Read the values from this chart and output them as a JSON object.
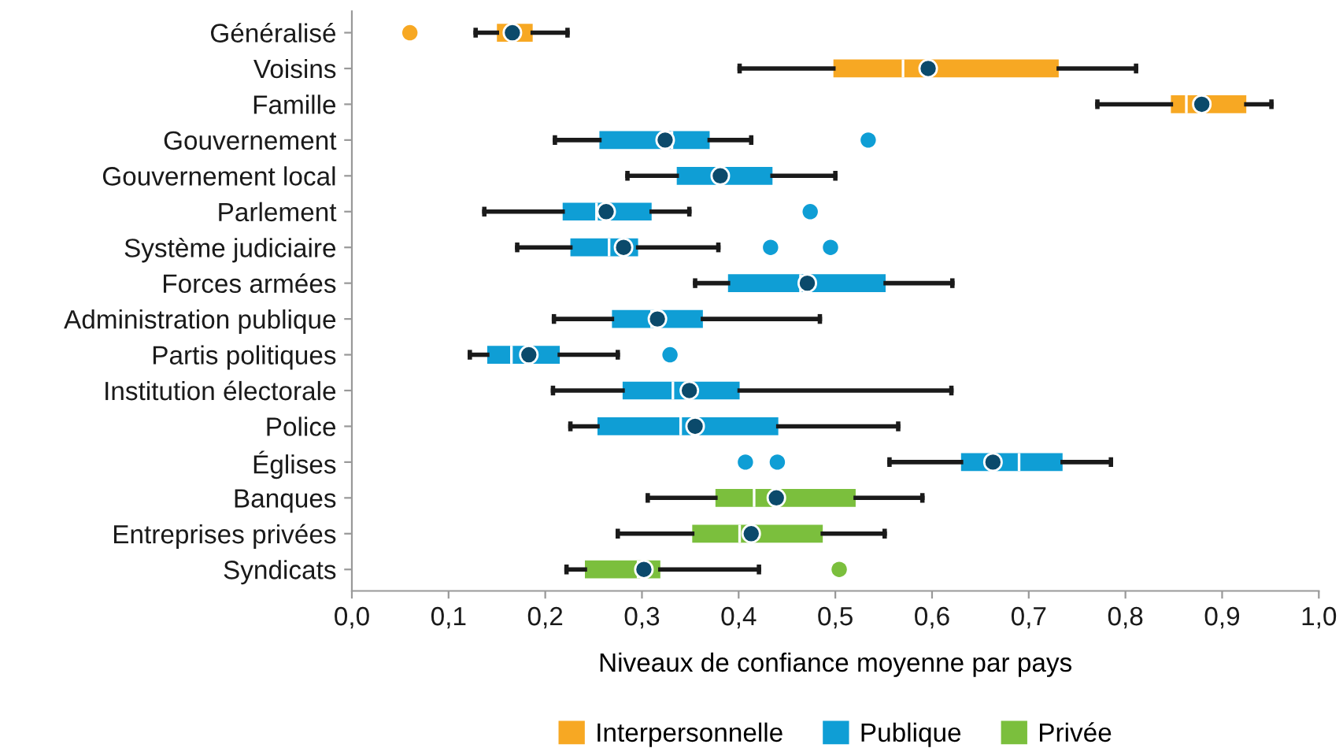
{
  "chart_data": {
    "type": "box",
    "orientation": "horizontal",
    "xlabel": "Niveaux de confiance moyenne par pays",
    "legend": "bottom",
    "grid": false,
    "categories": [
      "Généralisé",
      "Voisins",
      "Famille",
      "Gouvernement",
      "Gouvernement local",
      "Parlement",
      "Système judiciaire",
      "Forces armées",
      "Administration publique",
      "Partis politiques",
      "Institution électorale",
      "Police",
      "Églises",
      "Banques",
      "Entreprises privées",
      "Syndicats"
    ],
    "xlim": [
      0,
      1
    ],
    "xticks": [
      {
        "value": 0,
        "label": "0,0"
      },
      {
        "value": 0.1,
        "label": "0,1"
      },
      {
        "value": 0.2,
        "label": "0,2"
      },
      {
        "value": 0.3,
        "label": "0,3"
      },
      {
        "value": 0.4,
        "label": "0,4"
      },
      {
        "value": 0.5,
        "label": "0,5"
      },
      {
        "value": 0.6,
        "label": "0,6"
      },
      {
        "value": 0.7,
        "label": "0,7"
      },
      {
        "value": 0.8,
        "label": "0,8"
      },
      {
        "value": 0.9,
        "label": "0,9"
      },
      {
        "value": 1,
        "label": "1,0"
      }
    ],
    "series": [
      {
        "name": "Interpersonnelle",
        "color": "#f7a823",
        "boxes": [
          {
            "low": 0.128,
            "q1": 0.15,
            "median": 0.165,
            "q3": 0.187,
            "high": 0.223,
            "mean": 0.166,
            "outliers": [
              0.06
            ]
          },
          {
            "low": 0.401,
            "q1": 0.498,
            "median": 0.57,
            "q3": 0.731,
            "high": 0.811,
            "mean": 0.596
          },
          {
            "low": 0.771,
            "q1": 0.847,
            "median": 0.863,
            "q3": 0.925,
            "high": 0.951,
            "mean": 0.879
          },
          null,
          null,
          null,
          null,
          null,
          null,
          null,
          null,
          null,
          null,
          null,
          null,
          null
        ]
      },
      {
        "name": "Publique",
        "color": "#0f9ed5",
        "boxes": [
          null,
          null,
          null,
          {
            "low": 0.21,
            "q1": 0.256,
            "median": 0.331,
            "q3": 0.37,
            "high": 0.413,
            "mean": 0.324,
            "outliers": [
              0.534
            ]
          },
          {
            "low": 0.285,
            "q1": 0.336,
            "median": 0.38,
            "q3": 0.435,
            "high": 0.5,
            "mean": 0.381
          },
          {
            "low": 0.137,
            "q1": 0.218,
            "median": 0.253,
            "q3": 0.31,
            "high": 0.349,
            "mean": 0.263,
            "outliers": [
              0.474
            ]
          },
          {
            "low": 0.171,
            "q1": 0.226,
            "median": 0.266,
            "q3": 0.296,
            "high": 0.379,
            "mean": 0.281,
            "outliers": [
              0.433,
              0.495
            ]
          },
          {
            "low": 0.355,
            "q1": 0.389,
            "median": 0.464,
            "q3": 0.552,
            "high": 0.621,
            "mean": 0.471
          },
          {
            "low": 0.209,
            "q1": 0.269,
            "median": 0.31,
            "q3": 0.363,
            "high": 0.484,
            "mean": 0.316
          },
          {
            "low": 0.122,
            "q1": 0.14,
            "median": 0.165,
            "q3": 0.215,
            "high": 0.275,
            "mean": 0.183,
            "outliers": [
              0.329
            ]
          },
          {
            "low": 0.208,
            "q1": 0.28,
            "median": 0.332,
            "q3": 0.401,
            "high": 0.62,
            "mean": 0.349
          },
          {
            "low": 0.226,
            "q1": 0.254,
            "median": 0.34,
            "q3": 0.441,
            "high": 0.565,
            "mean": 0.355
          },
          {
            "low": 0.556,
            "q1": 0.63,
            "median": 0.69,
            "q3": 0.735,
            "high": 0.785,
            "mean": 0.663,
            "outliers": [
              0.407,
              0.44
            ]
          },
          null,
          null,
          null
        ]
      },
      {
        "name": "Privée",
        "color": "#7bbf3d",
        "boxes": [
          null,
          null,
          null,
          null,
          null,
          null,
          null,
          null,
          null,
          null,
          null,
          null,
          null,
          {
            "low": 0.306,
            "q1": 0.376,
            "median": 0.416,
            "q3": 0.521,
            "high": 0.59,
            "mean": 0.439
          },
          {
            "low": 0.275,
            "q1": 0.352,
            "median": 0.401,
            "q3": 0.487,
            "high": 0.551,
            "mean": 0.413
          },
          {
            "low": 0.222,
            "q1": 0.241,
            "median": 0.296,
            "q3": 0.319,
            "high": 0.421,
            "mean": 0.302,
            "outliers": [
              0.504
            ]
          }
        ]
      }
    ]
  }
}
